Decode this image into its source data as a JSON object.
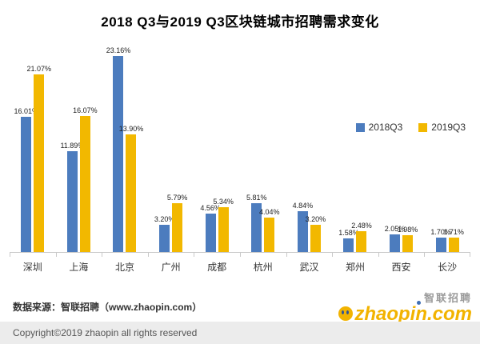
{
  "page": {
    "title": "2018 Q3与2019 Q3区块链城市招聘需求变化",
    "source_note": "数据来源：智联招聘（www.zhaopin.com）",
    "copyright": "Copyright©2019 zhaopin all rights reserved",
    "watermark": {
      "brand_cn": "智联招聘",
      "brand_en": "zhaopin.com"
    }
  },
  "chart_data": {
    "type": "bar",
    "title": "2018 Q3与2019 Q3区块链城市招聘需求变化",
    "categories": [
      "深圳",
      "上海",
      "北京",
      "广州",
      "成都",
      "杭州",
      "武汉",
      "郑州",
      "西安",
      "长沙"
    ],
    "series": [
      {
        "name": "2018Q3",
        "color": "#4c7cbe",
        "values": [
          16.01,
          11.89,
          23.16,
          3.2,
          4.56,
          5.81,
          4.84,
          1.58,
          2.05,
          1.7
        ]
      },
      {
        "name": "2019Q3",
        "color": "#f2b800",
        "values": [
          21.07,
          16.07,
          13.9,
          5.79,
          5.34,
          4.04,
          3.2,
          2.48,
          1.98,
          1.71
        ]
      }
    ],
    "value_format": "percent_2dp",
    "xlabel": "",
    "ylabel": "",
    "ylim": [
      0,
      25
    ],
    "grid": false,
    "legend_position": "right-middle"
  }
}
